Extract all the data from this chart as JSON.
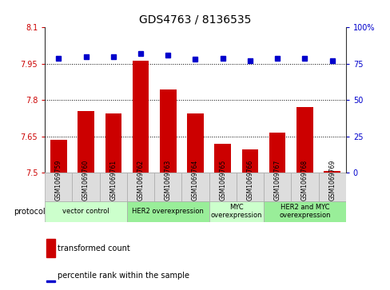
{
  "title": "GDS4763 / 8136535",
  "samples": [
    "GSM1069759",
    "GSM1069760",
    "GSM1069761",
    "GSM1069762",
    "GSM1069763",
    "GSM1069764",
    "GSM1069765",
    "GSM1069766",
    "GSM1069767",
    "GSM1069768",
    "GSM1069769"
  ],
  "bar_values": [
    7.635,
    7.755,
    7.745,
    7.962,
    7.845,
    7.745,
    7.62,
    7.595,
    7.665,
    7.77,
    7.507
  ],
  "dot_values": [
    79,
    80,
    80,
    82,
    81,
    78,
    79,
    77,
    79,
    79,
    77
  ],
  "bar_color": "#cc0000",
  "dot_color": "#0000cc",
  "ylim_left": [
    7.5,
    8.1
  ],
  "ylim_right": [
    0,
    100
  ],
  "yticks_left": [
    7.5,
    7.65,
    7.8,
    7.95,
    8.1
  ],
  "yticks_right": [
    0,
    25,
    50,
    75,
    100
  ],
  "yticklabels_right": [
    "0",
    "25",
    "50",
    "75",
    "100%"
  ],
  "gridlines": [
    7.65,
    7.8,
    7.95
  ],
  "group_spans": [
    {
      "start": 0,
      "end": 2,
      "label": "vector control",
      "color": "#ccffcc"
    },
    {
      "start": 3,
      "end": 5,
      "label": "HER2 overexpression",
      "color": "#99ee99"
    },
    {
      "start": 6,
      "end": 7,
      "label": "MYC\noverexpression",
      "color": "#ccffcc"
    },
    {
      "start": 8,
      "end": 10,
      "label": "HER2 and MYC\noverexpression",
      "color": "#99ee99"
    }
  ],
  "sample_box_color": "#dddddd",
  "sample_box_edge": "#aaaaaa",
  "protocol_label": "protocol",
  "legend_bar_label": "transformed count",
  "legend_dot_label": "percentile rank within the sample",
  "background_color": "#ffffff",
  "grid_color": "#000000",
  "label_color_left": "#cc0000",
  "label_color_right": "#0000cc",
  "title_fontsize": 10,
  "tick_fontsize": 7,
  "sample_fontsize": 5.5,
  "group_fontsize": 6,
  "legend_fontsize": 7
}
